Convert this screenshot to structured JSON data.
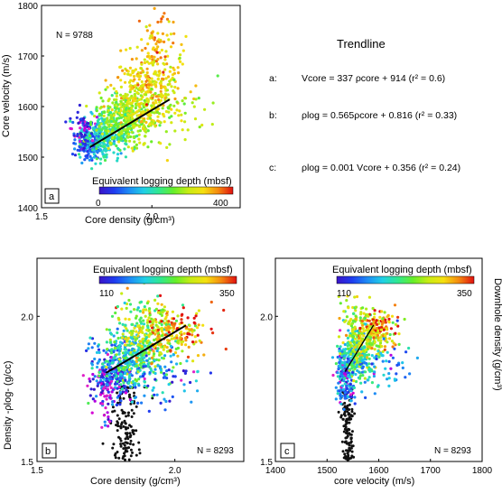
{
  "trendline_title": "Trendline",
  "equations": [
    {
      "letter": "a:",
      "text": "Vcore = 337 ρcore + 914 (r² = 0.6)"
    },
    {
      "letter": "b:",
      "text": "ρlog = 0.565ρcore + 0.816 (r² = 0.33)"
    },
    {
      "letter": "c:",
      "text": "ρlog = 0.001 Vcore + 0.356 (r² = 0.24)"
    }
  ],
  "colorbar": {
    "stops": [
      "#3a14c8",
      "#1f3cf0",
      "#1e8cf5",
      "#20d0e6",
      "#30e890",
      "#66ee2a",
      "#c8ec14",
      "#f5e010",
      "#f58a10",
      "#e01010"
    ]
  },
  "chart_data": [
    {
      "id": "a",
      "type": "scatter",
      "panel_label": "a",
      "n_label": "N = 9788",
      "xlabel": "Core density  (g/cm³)",
      "ylabel": "Core velocity (m/s)",
      "xlim": [
        1.5,
        2.4
      ],
      "ylim": [
        1400,
        1800
      ],
      "xticks": [
        "1.5",
        "2.0"
      ],
      "xtick_values": [
        1.5,
        2.0
      ],
      "yticks": [
        "1400",
        "1500",
        "1600",
        "1700",
        "1800"
      ],
      "ytick_values": [
        1400,
        1500,
        1600,
        1700,
        1800
      ],
      "legend_title": "Equivalent logging depth (mbsf)",
      "depth_range": [
        0,
        400
      ],
      "colorbar_labels": [
        "0",
        "400"
      ],
      "cloud": [
        {
          "x": 1.72,
          "y": 1525,
          "sx": 0.03,
          "sy": 15,
          "n": 160,
          "depth": 60
        },
        {
          "x": 1.78,
          "y": 1540,
          "sx": 0.05,
          "sy": 22,
          "n": 240,
          "depth": 150
        },
        {
          "x": 1.87,
          "y": 1570,
          "sx": 0.06,
          "sy": 25,
          "n": 320,
          "depth": 230
        },
        {
          "x": 1.95,
          "y": 1610,
          "sx": 0.07,
          "sy": 35,
          "n": 260,
          "depth": 290
        },
        {
          "x": 2.0,
          "y": 1660,
          "sx": 0.07,
          "sy": 45,
          "n": 170,
          "depth": 320
        },
        {
          "x": 1.68,
          "y": 1555,
          "sx": 0.03,
          "sy": 20,
          "n": 60,
          "depth": 20
        },
        {
          "x": 2.1,
          "y": 1600,
          "sx": 0.08,
          "sy": 35,
          "n": 60,
          "depth": 260
        },
        {
          "x": 2.02,
          "y": 1735,
          "sx": 0.05,
          "sy": 28,
          "n": 35,
          "depth": 340
        }
      ],
      "trendline": {
        "x": [
          1.72,
          2.08
        ],
        "y": [
          1520,
          1614
        ]
      }
    },
    {
      "id": "b",
      "type": "scatter",
      "panel_label": "b",
      "n_label": "N = 8293",
      "xlabel": "Core density (g/cm³)",
      "ylabel": "Density -ρlog- (g/cc)",
      "xlim": [
        1.5,
        2.25
      ],
      "ylim": [
        1.5,
        2.2
      ],
      "xticks": [
        "1.5",
        "2.0"
      ],
      "xtick_values": [
        1.5,
        2.0
      ],
      "yticks": [
        "1.5",
        "2.0"
      ],
      "ytick_values": [
        1.5,
        2.0
      ],
      "legend_title": "Equivalent logging depth (mbsf)",
      "depth_range": [
        110,
        350
      ],
      "colorbar_labels": [
        "110",
        "350"
      ],
      "cloud": [
        {
          "x": 1.77,
          "y": 1.78,
          "sx": 0.04,
          "sy": 0.04,
          "n": 140,
          "depth": 125
        },
        {
          "x": 1.8,
          "y": 1.83,
          "sx": 0.05,
          "sy": 0.05,
          "n": 180,
          "depth": 170
        },
        {
          "x": 1.86,
          "y": 1.88,
          "sx": 0.06,
          "sy": 0.05,
          "n": 260,
          "depth": 220
        },
        {
          "x": 1.95,
          "y": 1.93,
          "sx": 0.06,
          "sy": 0.04,
          "n": 200,
          "depth": 280
        },
        {
          "x": 2.02,
          "y": 1.96,
          "sx": 0.06,
          "sy": 0.04,
          "n": 70,
          "depth": 330
        },
        {
          "x": 1.88,
          "y": 2.0,
          "sx": 0.05,
          "sy": 0.05,
          "n": 60,
          "depth": 250
        },
        {
          "x": 1.95,
          "y": 1.78,
          "sx": 0.07,
          "sy": 0.05,
          "n": 60,
          "depth": 160
        },
        {
          "x": 1.75,
          "y": 1.72,
          "sx": 0.02,
          "sy": 0.06,
          "n": 50,
          "depth": 115
        }
      ],
      "black_points": {
        "x": 1.82,
        "y_min": 1.5,
        "y_max": 1.76,
        "sx": 0.025,
        "n": 130
      },
      "trendline": {
        "x": [
          1.75,
          2.04
        ],
        "y": [
          1.805,
          1.969
        ]
      }
    },
    {
      "id": "c",
      "type": "scatter",
      "panel_label": "c",
      "n_label": "N = 8293",
      "xlabel": "core velocity (m/s)",
      "ylabel": "Downhole density (g/cm³)",
      "xlim": [
        1400,
        1800
      ],
      "ylim": [
        1.5,
        2.2
      ],
      "xticks": [
        "1400",
        "1500",
        "1600",
        "1700",
        "1800"
      ],
      "xtick_values": [
        1400,
        1500,
        1600,
        1700,
        1800
      ],
      "yticks": [
        "1.5",
        "2.0"
      ],
      "ytick_values": [
        1.5,
        2.0
      ],
      "legend_title": "Equivalent logging depth (mbsf)",
      "depth_range": [
        110,
        350
      ],
      "colorbar_labels": [
        "110",
        "350"
      ],
      "cloud": [
        {
          "x": 1535,
          "y": 1.8,
          "sx": 8,
          "sy": 0.05,
          "n": 160,
          "depth": 150
        },
        {
          "x": 1555,
          "y": 1.86,
          "sx": 15,
          "sy": 0.05,
          "n": 220,
          "depth": 210
        },
        {
          "x": 1580,
          "y": 1.93,
          "sx": 20,
          "sy": 0.04,
          "n": 200,
          "depth": 270
        },
        {
          "x": 1600,
          "y": 1.96,
          "sx": 20,
          "sy": 0.03,
          "n": 90,
          "depth": 310
        },
        {
          "x": 1600,
          "y": 1.82,
          "sx": 30,
          "sy": 0.05,
          "n": 70,
          "depth": 170
        },
        {
          "x": 1560,
          "y": 2.01,
          "sx": 18,
          "sy": 0.03,
          "n": 40,
          "depth": 260
        }
      ],
      "black_points": {
        "x": 1540,
        "y_min": 1.5,
        "y_max": 1.75,
        "sx": 6,
        "n": 120
      },
      "trendline": {
        "x": [
          1535,
          1590
        ],
        "y": [
          1.81,
          1.97
        ]
      }
    }
  ]
}
